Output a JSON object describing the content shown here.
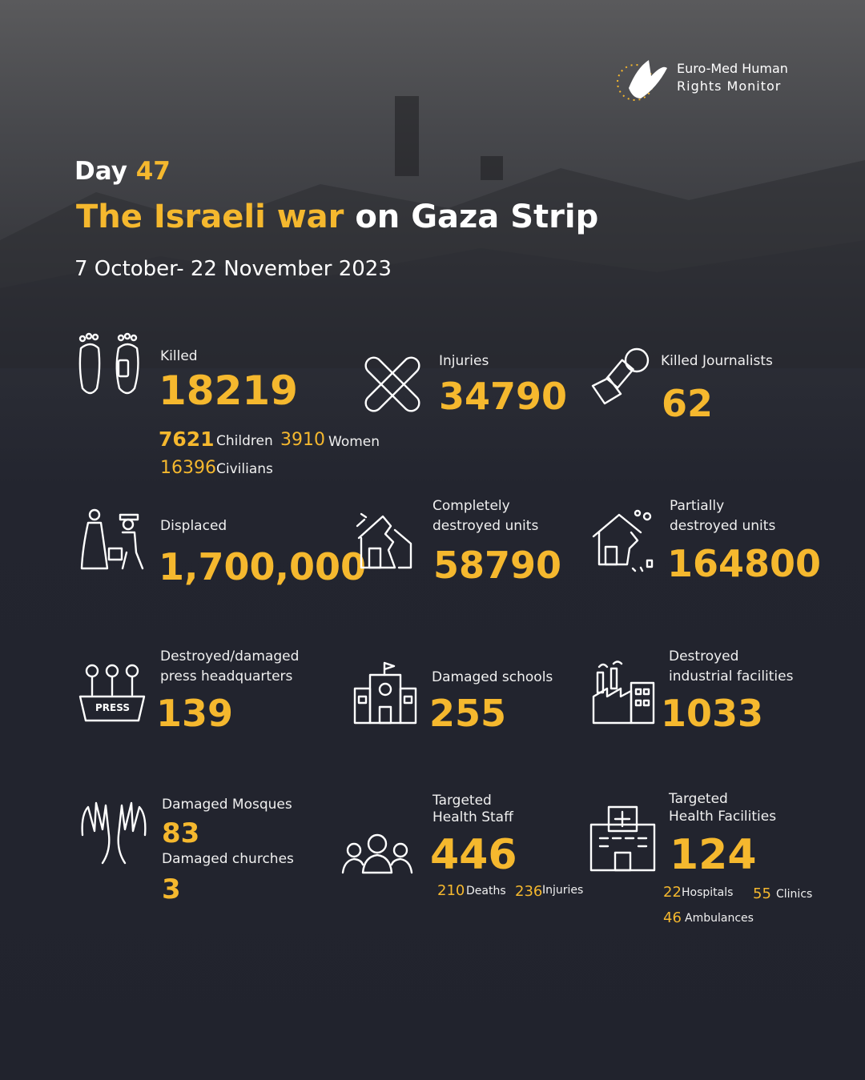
{
  "brand": {
    "line1": "Euro-Med Human",
    "line2": "Rights Monitor"
  },
  "header": {
    "day_label": "Day",
    "day_number": "47",
    "title_highlight": "The Israeli war",
    "title_rest": "on Gaza Strip",
    "date_range": "7 October- 22 November 2023"
  },
  "colors": {
    "accent": "#f5b82e",
    "children": "#3d9df0",
    "background": "#23252f"
  },
  "stats": {
    "killed": {
      "icon": "feet-tag-icon",
      "label": "Killed",
      "value": "18219",
      "children_value": "7621",
      "children_label": "Children",
      "women_value": "3910",
      "women_label": "Women",
      "civilians_value": "16396",
      "civilians_label": "Civilians"
    },
    "injuries": {
      "icon": "bandage-icon",
      "label": "Injuries",
      "value": "34790"
    },
    "journalists": {
      "icon": "microphone-icon",
      "label": "Killed Journalists",
      "value": "62"
    },
    "displaced": {
      "icon": "displaced-people-icon",
      "label": "Displaced",
      "value": "1,700,000"
    },
    "destroyed_units": {
      "icon": "destroyed-house-icon",
      "label1": "Completely",
      "label2": "destroyed units",
      "value": "58790"
    },
    "partial_units": {
      "icon": "damaged-house-icon",
      "label1": "Partially",
      "label2": "destroyed units",
      "value": "164800"
    },
    "press": {
      "icon": "press-podium-icon",
      "label1": "Destroyed/damaged",
      "label2": "press headquarters",
      "value": "139",
      "badge": "PRESS"
    },
    "schools": {
      "icon": "school-icon",
      "label": "Damaged schools",
      "value": "255"
    },
    "industrial": {
      "icon": "factory-icon",
      "label1": "Destroyed",
      "label2": "industrial facilities",
      "value": "1033"
    },
    "mosques": {
      "icon": "praying-hands-icon",
      "label": "Damaged Mosques",
      "value": "83",
      "churches_label": "Damaged churches",
      "churches_value": "3"
    },
    "health_staff": {
      "icon": "medical-staff-icon",
      "label1": "Targeted",
      "label2": "Health Staff",
      "value": "446",
      "deaths_value": "210",
      "deaths_label": "Deaths",
      "injuries_value": "236",
      "injuries_label": "Injuries"
    },
    "health_facilities": {
      "icon": "hospital-icon",
      "label1": "Targeted",
      "label2": "Health Facilities",
      "value": "124",
      "hospitals_value": "22",
      "hospitals_label": "Hospitals",
      "clinics_value": "55",
      "clinics_label": "Clinics",
      "ambulances_value": "46",
      "ambulances_label": "Ambulances"
    }
  }
}
